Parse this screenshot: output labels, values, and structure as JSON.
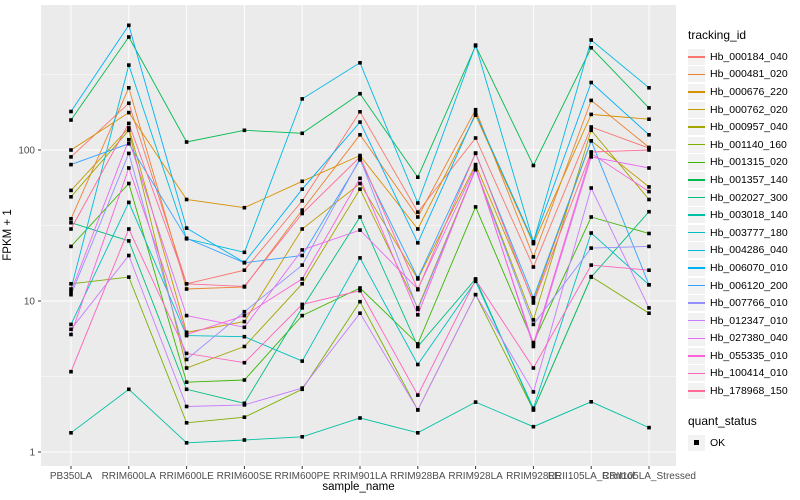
{
  "figure": {
    "x_axis_title": "sample_name",
    "y_axis_title": "FPKM + 1"
  },
  "legend": {
    "tracking_title": "tracking_id",
    "quant_title": "quant_status",
    "quant_ok_label": "OK",
    "quant_marker": "black-filled-square",
    "key_background": "#F2F2F2"
  },
  "chart_data": {
    "type": "line",
    "title": "",
    "xlabel": "sample_name",
    "ylabel": "FPKM + 1",
    "y_scale": "log10",
    "ylim": [
      1,
      900
    ],
    "y_tick_labels": [
      "1",
      "10",
      "100"
    ],
    "y_ticks": [
      1,
      10,
      100
    ],
    "y_minor_ticks": [
      3.162,
      31.62,
      316.2
    ],
    "grid": true,
    "legend_position": "right",
    "panel_bg": "#EBEBEB",
    "gridline_color": "#FFFFFF",
    "axis_text_color": "#4D4D4D",
    "tick_color": "#333333",
    "point_marker": "filled-square",
    "point_color": "#000000",
    "categories": [
      "PB350LA",
      "RRIM600LA",
      "RRIM600LE",
      "RRIM600SE",
      "RRIM600PE",
      "RRIM901LA",
      "RRIM928BA",
      "RRIM928LA",
      "RRIM928LE",
      "RRII105LA_Control",
      "RRII105LA_Stressed"
    ],
    "series": [
      {
        "name": "Hb_000184_040",
        "color": "#F8766D",
        "values": [
          90,
          204,
          13,
          16,
          46,
          179,
          38.8,
          120,
          16.8,
          142,
          103
        ]
      },
      {
        "name": "Hb_000481_020",
        "color": "#EA8331",
        "values": [
          35,
          258,
          12,
          12.4,
          40,
          126,
          36,
          185,
          19.6,
          213,
          104
        ]
      },
      {
        "name": "Hb_000676_220",
        "color": "#D89000",
        "values": [
          100,
          177,
          47,
          41.5,
          62,
          92,
          30,
          170,
          24,
          172,
          160
        ]
      },
      {
        "name": "Hb_000762_020",
        "color": "#C09B00",
        "values": [
          54,
          140,
          6.2,
          7.3,
          30,
          60,
          14,
          80,
          10,
          115,
          57
        ]
      },
      {
        "name": "Hb_000957_040",
        "color": "#A3A500",
        "values": [
          49,
          135,
          3.6,
          5.0,
          13,
          55,
          9,
          75,
          7.5,
          135,
          47
        ]
      },
      {
        "name": "Hb_001140_160",
        "color": "#7CAE00",
        "values": [
          13,
          14.4,
          1.56,
          1.7,
          2.6,
          9.9,
          1.9,
          11,
          1.9,
          14.5,
          8.3
        ]
      },
      {
        "name": "Hb_001315_020",
        "color": "#39B600",
        "values": [
          23,
          60,
          2.9,
          3.0,
          8,
          12.2,
          5.2,
          42,
          5.3,
          36,
          28
        ]
      },
      {
        "name": "Hb_001357_140",
        "color": "#00BB4E",
        "values": [
          158,
          560,
          113,
          135,
          129,
          236,
          66,
          490,
          79,
          475,
          190
        ]
      },
      {
        "name": "Hb_002027_300",
        "color": "#00BF7D",
        "values": [
          33,
          25,
          2.6,
          2.1,
          9,
          36,
          5.0,
          14,
          1.9,
          14.4,
          39
        ]
      },
      {
        "name": "Hb_003018_140",
        "color": "#00C1A3",
        "values": [
          1.34,
          2.6,
          1.15,
          1.2,
          1.26,
          1.68,
          1.34,
          2.14,
          1.47,
          2.15,
          1.45
        ]
      },
      {
        "name": "Hb_003777_180",
        "color": "#00BFC4",
        "values": [
          7,
          45,
          5.9,
          5.8,
          4.0,
          19.3,
          3.8,
          13.5,
          1.95,
          28.2,
          12.8
        ]
      },
      {
        "name": "Hb_004286_040",
        "color": "#00BAE0",
        "values": [
          12,
          365,
          25.8,
          21,
          218,
          378,
          44.6,
          495,
          24.6,
          535,
          258
        ]
      },
      {
        "name": "Hb_006070_010",
        "color": "#00B0F6",
        "values": [
          180,
          670,
          30.4,
          18,
          55,
          153,
          24.3,
          175,
          24.6,
          280,
          126
        ]
      },
      {
        "name": "Hb_006120_200",
        "color": "#35A2FF",
        "values": [
          80,
          110,
          26,
          17.9,
          20,
          86,
          14.2,
          95,
          10.5,
          115,
          12.8
        ]
      },
      {
        "name": "Hb_007766_010",
        "color": "#9590FF",
        "values": [
          11,
          95,
          4.1,
          8.5,
          17.3,
          88,
          8.8,
          74,
          7,
          22.4,
          23
        ]
      },
      {
        "name": "Hb_012347_010",
        "color": "#C77CFF",
        "values": [
          6.5,
          20,
          2.0,
          2.05,
          2.65,
          8.3,
          1.9,
          11,
          2.5,
          56,
          9
        ]
      },
      {
        "name": "Hb_027380_040",
        "color": "#E76BF3",
        "values": [
          11.5,
          117,
          8,
          6.7,
          21.8,
          29.5,
          12,
          78,
          5.0,
          90,
          76
        ]
      },
      {
        "name": "Hb_055335_010",
        "color": "#FA62DB",
        "values": [
          6,
          76,
          6.0,
          8.0,
          14,
          65,
          8.1,
          76,
          5.2,
          95,
          53
        ]
      },
      {
        "name": "Hb_100414_010",
        "color": "#FF62BC",
        "values": [
          3.4,
          30,
          4.5,
          3.9,
          9.5,
          11.7,
          2.38,
          13.8,
          3.6,
          17.3,
          16
        ]
      },
      {
        "name": "Hb_178968_150",
        "color": "#FF6A98",
        "values": [
          30,
          150,
          13,
          12.5,
          38,
          90,
          11.9,
          95.6,
          9.7,
          97,
          100
        ]
      }
    ]
  }
}
